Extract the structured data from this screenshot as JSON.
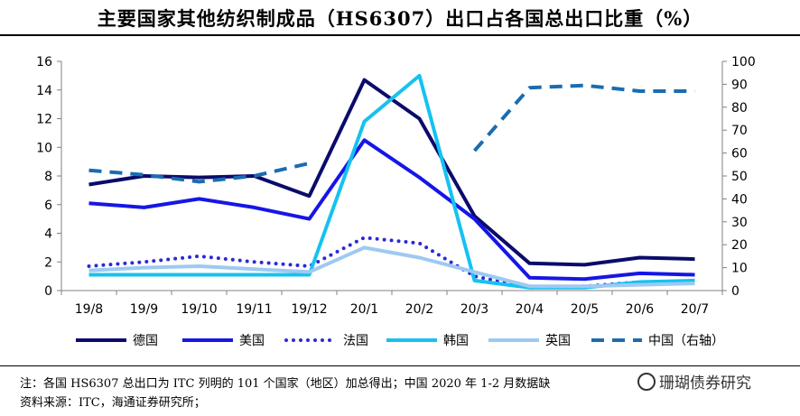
{
  "title": "主要国家其他纺织制成品（HS6307）出口占各国总出口比重（%）",
  "notes": {
    "line1": "注：各国 HS6307 总出口为 ITC 列明的 101 个国家（地区）加总得出；中国 2020 年 1-2 月数据缺",
    "line2": "资料来源：ITC，海通证券研究所；"
  },
  "watermark": "珊瑚债券研究",
  "chart_data": {
    "type": "line",
    "categories": [
      "19/8",
      "19/9",
      "19/10",
      "19/11",
      "19/12",
      "20/1",
      "20/2",
      "20/3",
      "20/4",
      "20/5",
      "20/6",
      "20/7"
    ],
    "ylim_left": [
      0,
      16
    ],
    "yticks_left": [
      "0",
      "2",
      "4",
      "6",
      "8",
      "10",
      "12",
      "14",
      "16"
    ],
    "ylim_right": [
      0,
      100
    ],
    "yticks_right": [
      "0",
      "10",
      "20",
      "30",
      "40",
      "50",
      "60",
      "70",
      "80",
      "90",
      "100"
    ],
    "series": [
      {
        "name": "德国",
        "axis": "left",
        "color": "#0b0b6b",
        "dash": "solid",
        "values": [
          7.4,
          8.0,
          7.9,
          8.0,
          6.6,
          14.7,
          12.0,
          5.2,
          1.9,
          1.8,
          2.3,
          2.2
        ]
      },
      {
        "name": "美国",
        "axis": "left",
        "color": "#1616e6",
        "dash": "solid",
        "values": [
          6.1,
          5.8,
          6.4,
          5.8,
          5.0,
          10.5,
          7.9,
          5.0,
          0.9,
          0.8,
          1.2,
          1.1
        ]
      },
      {
        "name": "法国",
        "axis": "left",
        "color": "#2a2ad6",
        "dash": "dot",
        "values": [
          1.7,
          2.0,
          2.4,
          2.0,
          1.7,
          3.7,
          3.3,
          1.0,
          0.2,
          0.3,
          0.6,
          0.6
        ]
      },
      {
        "name": "韩国",
        "axis": "left",
        "color": "#15c2f0",
        "dash": "solid",
        "values": [
          1.1,
          1.1,
          1.1,
          1.1,
          1.1,
          11.8,
          15.0,
          0.7,
          0.2,
          0.2,
          0.6,
          0.7
        ]
      },
      {
        "name": "英国",
        "axis": "left",
        "color": "#9ec9f2",
        "dash": "solid",
        "values": [
          1.4,
          1.6,
          1.7,
          1.5,
          1.3,
          3.0,
          2.3,
          1.3,
          0.3,
          0.3,
          0.4,
          0.5
        ]
      },
      {
        "name": "中国（右轴）",
        "axis": "right",
        "color": "#1b6cb0",
        "dash": "dash",
        "values": [
          52.5,
          50.5,
          47.5,
          50.0,
          55.5,
          null,
          null,
          61.0,
          88.5,
          89.5,
          87.0,
          87.0
        ]
      }
    ]
  }
}
